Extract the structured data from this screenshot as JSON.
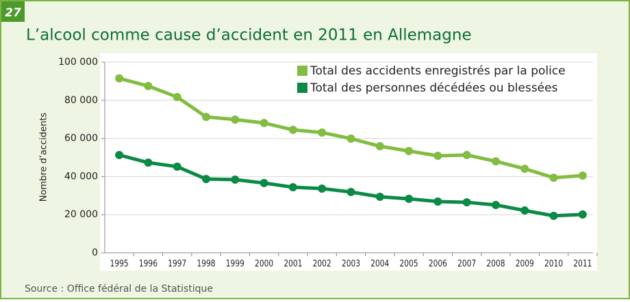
{
  "badge": "27",
  "chart_data": {
    "type": "line",
    "title": "L’alcool comme cause d’accident en 2011 en Allemagne",
    "ylabel": "Nombre d’accidents",
    "source": "Source : Office fédéral de la Statistique",
    "categories": [
      "1995",
      "1996",
      "1997",
      "1998",
      "1999",
      "2000",
      "2001",
      "2002",
      "2003",
      "2004",
      "2005",
      "2006",
      "2007",
      "2008",
      "2009",
      "2010",
      "2011"
    ],
    "series": [
      {
        "name": "Total des accidents enregistrés par la police",
        "color": "#82bc41",
        "values": [
          91500,
          87500,
          81700,
          71300,
          69900,
          68100,
          64500,
          63100,
          59900,
          55900,
          53400,
          50900,
          51300,
          48000,
          44100,
          39400,
          40500
        ]
      },
      {
        "name": "Total des personnes décédées ou blessées",
        "color": "#0a8a45",
        "values": [
          51300,
          47300,
          45200,
          38700,
          38400,
          36600,
          34400,
          33700,
          31900,
          29400,
          28300,
          26900,
          26500,
          25100,
          22200,
          19400,
          20100
        ]
      }
    ],
    "ylim": [
      0,
      100000
    ],
    "yticks": [
      0,
      {
        "value": 20000,
        "label": "20 000"
      },
      {
        "value": 40000,
        "label": "40 000"
      },
      {
        "value": 60000,
        "label": "60 000"
      },
      {
        "value": 80000,
        "label": "80 000"
      },
      {
        "value": 100000,
        "label": "100 000"
      }
    ],
    "grid": true,
    "legend": "top-right"
  }
}
